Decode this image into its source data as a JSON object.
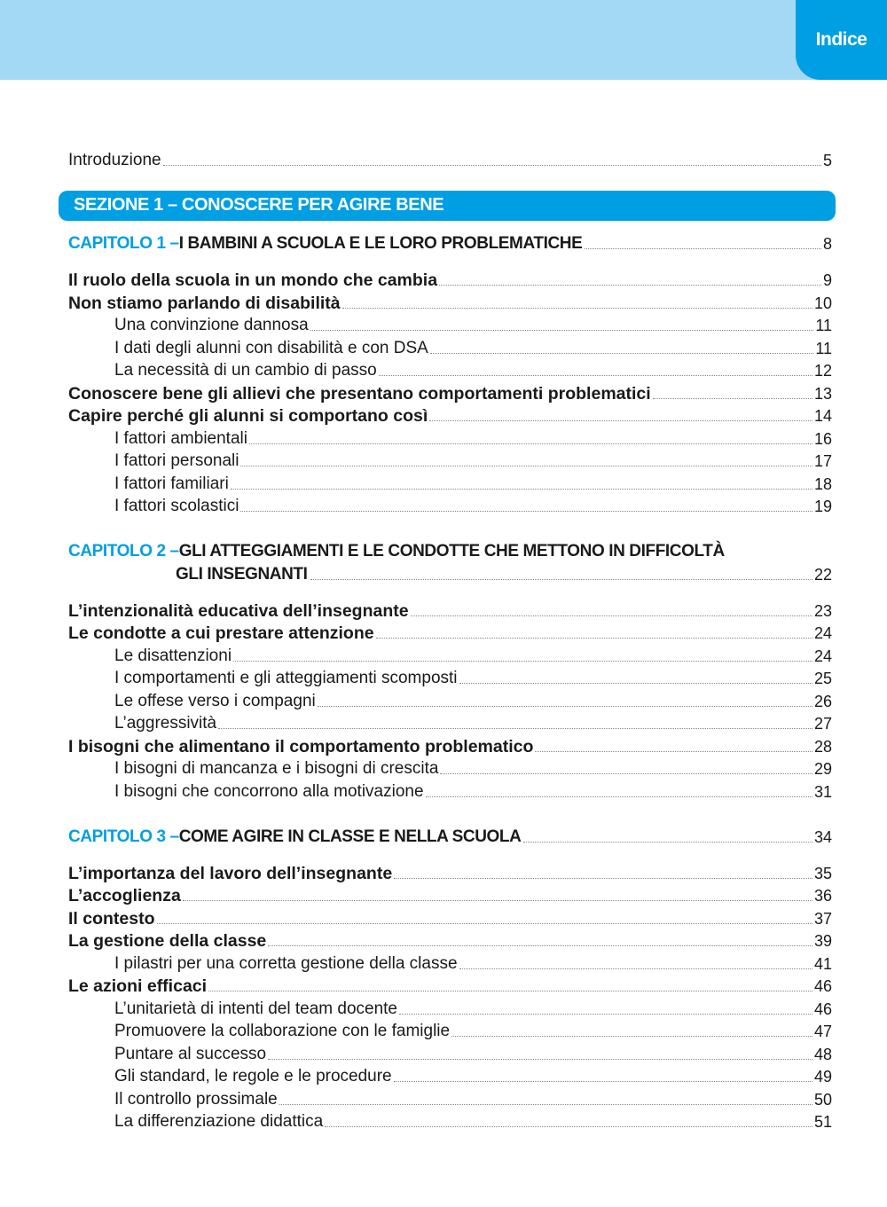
{
  "header": {
    "tab_label": "Indice",
    "accent_color": "#009fe3",
    "band_color": "#a3d9f5"
  },
  "intro": {
    "title": "Introduzione",
    "page": "5"
  },
  "section": {
    "title": "SEZIONE 1 – CONOSCERE PER AGIRE BENE"
  },
  "chapters": [
    {
      "label": "CAPITOLO 1 – ",
      "title_lines": [
        "I BAMBINI A SCUOLA E LE LORO PROBLEMATICHE"
      ],
      "page": "8",
      "entries": [
        {
          "level": 1,
          "title": "Il ruolo della scuola in un mondo che cambia",
          "page": "9"
        },
        {
          "level": 1,
          "title": "Non stiamo parlando di disabilità",
          "page": "10"
        },
        {
          "level": 2,
          "title": "Una convinzione dannosa",
          "page": "11"
        },
        {
          "level": 2,
          "title": "I dati degli alunni con disabilità e con DSA",
          "page": "11"
        },
        {
          "level": 2,
          "title": "La necessità di un cambio di passo",
          "page": "12"
        },
        {
          "level": 1,
          "title": "Conoscere bene gli allievi che presentano comportamenti problematici",
          "page": "13"
        },
        {
          "level": 1,
          "title": "Capire perché gli alunni si comportano così",
          "page": "14"
        },
        {
          "level": 2,
          "title": "I fattori ambientali",
          "page": "16"
        },
        {
          "level": 2,
          "title": "I fattori personali",
          "page": "17"
        },
        {
          "level": 2,
          "title": "I fattori familiari",
          "page": "18"
        },
        {
          "level": 2,
          "title": "I fattori scolastici",
          "page": "19"
        }
      ]
    },
    {
      "label": "CAPITOLO 2 – ",
      "title_lines": [
        "GLI ATTEGGIAMENTI E LE CONDOTTE CHE METTONO IN DIFFICOLTÀ",
        "GLI INSEGNANTI"
      ],
      "page": "22",
      "entries": [
        {
          "level": 1,
          "title": "L’intenzionalità educativa dell’insegnante",
          "page": "23"
        },
        {
          "level": 1,
          "title": "Le condotte a cui prestare attenzione",
          "page": "24"
        },
        {
          "level": 2,
          "title": "Le disattenzioni",
          "page": "24"
        },
        {
          "level": 2,
          "title": "I comportamenti e gli atteggiamenti scomposti",
          "page": "25"
        },
        {
          "level": 2,
          "title": "Le offese verso i compagni",
          "page": "26"
        },
        {
          "level": 2,
          "title": "L’aggressività",
          "page": "27"
        },
        {
          "level": 1,
          "title": "I bisogni che alimentano il comportamento problematico",
          "page": "28"
        },
        {
          "level": 2,
          "title": "I bisogni di mancanza e i bisogni di crescita",
          "page": "29"
        },
        {
          "level": 2,
          "title": "I bisogni che concorrono alla motivazione",
          "page": "31"
        }
      ]
    },
    {
      "label": "CAPITOLO 3 – ",
      "title_lines": [
        "COME AGIRE IN CLASSE E NELLA SCUOLA"
      ],
      "page": "34",
      "entries": [
        {
          "level": 1,
          "title": "L’importanza del lavoro dell’insegnante",
          "page": "35"
        },
        {
          "level": 1,
          "title": "L’accoglienza",
          "page": "36"
        },
        {
          "level": 1,
          "title": "Il contesto",
          "page": "37"
        },
        {
          "level": 1,
          "title": "La gestione della classe",
          "page": "39"
        },
        {
          "level": 2,
          "title": "I pilastri per una corretta gestione della classe",
          "page": "41"
        },
        {
          "level": 1,
          "title": "Le azioni efficaci",
          "page": "46"
        },
        {
          "level": 2,
          "title": "L’unitarietà di intenti del team docente",
          "page": "46"
        },
        {
          "level": 2,
          "title": "Promuovere la collaborazione con le famiglie",
          "page": "47"
        },
        {
          "level": 2,
          "title": "Puntare al successo",
          "page": "48"
        },
        {
          "level": 2,
          "title": "Gli standard, le regole e le procedure",
          "page": "49"
        },
        {
          "level": 2,
          "title": "Il controllo prossimale",
          "page": "50"
        },
        {
          "level": 2,
          "title": "La differenziazione didattica",
          "page": "51"
        }
      ]
    }
  ]
}
